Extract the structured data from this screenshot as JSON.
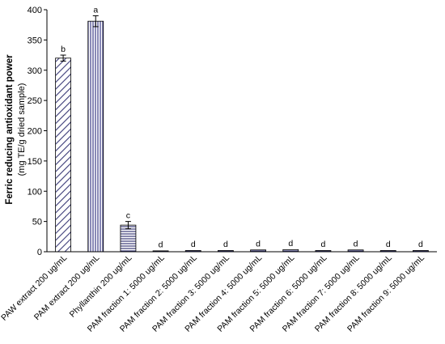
{
  "chart_data": {
    "type": "bar",
    "ylabel": "Ferric reducing antioxidant power",
    "ylabel_sub": "(mg TE/g dried sample)",
    "ylim": [
      0,
      400
    ],
    "yticks": [
      "0",
      "50",
      "100",
      "150",
      "200",
      "250",
      "300",
      "350",
      "400"
    ],
    "grid": false,
    "legend": "none",
    "categories": [
      "PAW extract 200 ug/mL",
      "PAM extract 200 ug/mL",
      "Phyllanthin 200 ug/mL",
      "PAM fraction 1: 5000 ug/mL",
      "PAM fraction 2: 5000 ug/mL",
      "PAM fraction 3: 5000 ug/mL",
      "PAM fraction 4: 5000 ug/mL",
      "PAM fraction 5: 5000 ug/mL",
      "PAM fraction 6: 5000 ug/mL",
      "PAM fraction 7: 5000 ug/mL",
      "PAM fraction 8: 5000 ug/mL",
      "PAM fraction 9: 5000 ug/mL"
    ],
    "values": [
      320,
      381,
      44,
      1.5,
      2,
      2,
      3,
      3.5,
      2,
      3,
      2,
      2
    ],
    "errors": [
      5,
      9,
      6,
      0.5,
      0.5,
      0.5,
      0.5,
      0.5,
      0.5,
      0.5,
      0.5,
      0.5
    ],
    "significance": [
      "b",
      "a",
      "c",
      "d",
      "d",
      "d",
      "d",
      "d",
      "d",
      "d",
      "d",
      "d"
    ],
    "patterns": [
      "diag",
      "vert",
      "horiz",
      "horiz",
      "horiz",
      "horiz",
      "horiz",
      "horiz",
      "horiz",
      "horiz",
      "horiz",
      "horiz"
    ],
    "colors": {
      "bar_stroke": "#000000",
      "pattern_diag": "#3b3b78",
      "pattern_vert": "#4a4a90",
      "pattern_horiz": "#3b3b78"
    }
  }
}
